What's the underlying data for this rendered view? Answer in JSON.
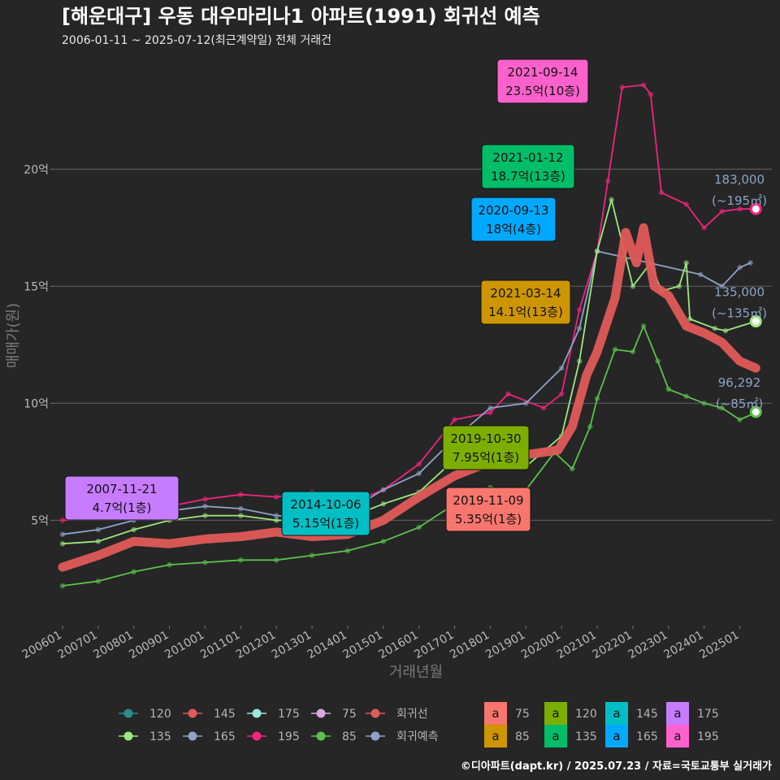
{
  "chart_data": {
    "type": "line",
    "title": "[해운대구] 우동 대우마리나1 아파트(1991) 회귀선 예측",
    "subtitle": "2006-01-11 ~ 2025-07-12(최근계약일) 전체 거래건",
    "xlabel": "거래년월",
    "ylabel": "매매가(원)",
    "caption": "©디아파트(dapt.kr) / 2025.07.23 / 자료=국토교통부 실거래가",
    "xlim": [
      2005.75,
      2025.9
    ],
    "ylim": [
      0.5,
      24.8
    ],
    "y_unit": "억",
    "x_ticks": [
      {
        "v": 2006.0,
        "label": "200601"
      },
      {
        "v": 2007.0,
        "label": "200701"
      },
      {
        "v": 2008.0,
        "label": "200801"
      },
      {
        "v": 2009.0,
        "label": "200901"
      },
      {
        "v": 2010.0,
        "label": "201001"
      },
      {
        "v": 2011.0,
        "label": "201101"
      },
      {
        "v": 2012.0,
        "label": "201201"
      },
      {
        "v": 2013.0,
        "label": "201301"
      },
      {
        "v": 2014.0,
        "label": "201401"
      },
      {
        "v": 2015.0,
        "label": "201501"
      },
      {
        "v": 2016.0,
        "label": "201601"
      },
      {
        "v": 2017.0,
        "label": "201701"
      },
      {
        "v": 2018.0,
        "label": "201801"
      },
      {
        "v": 2019.0,
        "label": "201901"
      },
      {
        "v": 2020.0,
        "label": "202001"
      },
      {
        "v": 2021.0,
        "label": "202101"
      },
      {
        "v": 2022.0,
        "label": "202201"
      },
      {
        "v": 2023.0,
        "label": "202301"
      },
      {
        "v": 2024.0,
        "label": "202401"
      },
      {
        "v": 2025.0,
        "label": "202501"
      }
    ],
    "y_ticks": [
      {
        "v": 5,
        "label": "5억"
      },
      {
        "v": 10,
        "label": "10억"
      },
      {
        "v": 15,
        "label": "15억"
      },
      {
        "v": 20,
        "label": "20억"
      }
    ],
    "grid": true,
    "series": [
      {
        "name": "195",
        "color": "#f0247f",
        "points": [
          [
            2006.0,
            5.0
          ],
          [
            2007.0,
            5.1
          ],
          [
            2008.0,
            5.4
          ],
          [
            2009.0,
            5.6
          ],
          [
            2010.0,
            5.9
          ],
          [
            2011.0,
            6.1
          ],
          [
            2012.0,
            6.0
          ],
          [
            2013.0,
            6.2
          ],
          [
            2014.0,
            5.7
          ],
          [
            2015.0,
            6.3
          ],
          [
            2016.0,
            7.4
          ],
          [
            2017.0,
            9.3
          ],
          [
            2018.0,
            9.6
          ],
          [
            2018.5,
            10.4
          ],
          [
            2019.5,
            9.8
          ],
          [
            2020.0,
            10.4
          ],
          [
            2020.5,
            14.0
          ],
          [
            2021.0,
            16.5
          ],
          [
            2021.3,
            19.5
          ],
          [
            2021.7,
            23.5
          ],
          [
            2022.3,
            23.6
          ],
          [
            2022.5,
            23.2
          ],
          [
            2022.8,
            19.0
          ],
          [
            2023.5,
            18.5
          ],
          [
            2024.0,
            17.5
          ],
          [
            2024.5,
            18.2
          ],
          [
            2025.0,
            18.3
          ],
          [
            2025.45,
            18.3
          ]
        ]
      },
      {
        "name": "165",
        "color": "#8ea2c9",
        "points": [
          [
            2006.0,
            4.4
          ],
          [
            2007.0,
            4.6
          ],
          [
            2008.0,
            5.0
          ],
          [
            2009.0,
            5.4
          ],
          [
            2010.0,
            5.6
          ],
          [
            2011.0,
            5.5
          ],
          [
            2012.0,
            5.2
          ],
          [
            2013.0,
            5.1
          ],
          [
            2014.0,
            5.4
          ],
          [
            2015.0,
            6.3
          ],
          [
            2016.0,
            7.0
          ],
          [
            2017.0,
            8.5
          ],
          [
            2018.0,
            9.8
          ],
          [
            2019.0,
            10.0
          ],
          [
            2020.0,
            11.5
          ],
          [
            2020.5,
            13.2
          ],
          [
            2021.0,
            16.5
          ],
          [
            2023.9,
            15.5
          ],
          [
            2024.5,
            15.0
          ],
          [
            2025.0,
            15.8
          ],
          [
            2025.3,
            16.0
          ]
        ]
      },
      {
        "name": "135",
        "color": "#9ce87f",
        "points": [
          [
            2006.0,
            4.0
          ],
          [
            2007.0,
            4.1
          ],
          [
            2008.0,
            4.6
          ],
          [
            2009.0,
            5.0
          ],
          [
            2010.0,
            5.2
          ],
          [
            2011.0,
            5.2
          ],
          [
            2012.0,
            5.0
          ],
          [
            2013.0,
            5.0
          ],
          [
            2014.0,
            5.1
          ],
          [
            2015.0,
            5.7
          ],
          [
            2016.0,
            6.2
          ],
          [
            2017.0,
            7.6
          ],
          [
            2018.0,
            7.8
          ],
          [
            2019.0,
            7.3
          ],
          [
            2020.0,
            8.6
          ],
          [
            2020.5,
            11.8
          ],
          [
            2021.0,
            16.5
          ],
          [
            2021.4,
            18.7
          ],
          [
            2022.0,
            15.0
          ],
          [
            2022.5,
            16.0
          ],
          [
            2022.8,
            14.8
          ],
          [
            2023.3,
            15.0
          ],
          [
            2023.5,
            16.0
          ],
          [
            2023.6,
            13.6
          ],
          [
            2024.3,
            13.2
          ],
          [
            2024.6,
            13.1
          ],
          [
            2025.45,
            13.5
          ]
        ]
      },
      {
        "name": "85",
        "color": "#5ac24a",
        "points": [
          [
            2006.0,
            2.2
          ],
          [
            2007.0,
            2.4
          ],
          [
            2008.0,
            2.8
          ],
          [
            2009.0,
            3.1
          ],
          [
            2010.0,
            3.2
          ],
          [
            2011.0,
            3.3
          ],
          [
            2012.0,
            3.3
          ],
          [
            2013.0,
            3.5
          ],
          [
            2014.0,
            3.7
          ],
          [
            2015.0,
            4.1
          ],
          [
            2016.0,
            4.7
          ],
          [
            2017.0,
            5.7
          ],
          [
            2018.0,
            6.4
          ],
          [
            2019.0,
            6.3
          ],
          [
            2019.8,
            7.9
          ],
          [
            2020.3,
            7.2
          ],
          [
            2020.8,
            9.0
          ],
          [
            2021.0,
            10.2
          ],
          [
            2021.5,
            12.3
          ],
          [
            2022.0,
            12.2
          ],
          [
            2022.3,
            13.3
          ],
          [
            2022.7,
            11.8
          ],
          [
            2023.0,
            10.6
          ],
          [
            2023.5,
            10.3
          ],
          [
            2024.0,
            10.0
          ],
          [
            2024.5,
            9.8
          ],
          [
            2025.0,
            9.3
          ],
          [
            2025.45,
            9.6
          ]
        ]
      },
      {
        "name": "회귀선",
        "color": "#e05a5a",
        "points": [
          [
            2006.0,
            3.0
          ],
          [
            2007.0,
            3.5
          ],
          [
            2008.0,
            4.1
          ],
          [
            2009.0,
            4.0
          ],
          [
            2010.0,
            4.2
          ],
          [
            2011.0,
            4.3
          ],
          [
            2012.0,
            4.5
          ],
          [
            2013.0,
            4.3
          ],
          [
            2014.0,
            4.4
          ],
          [
            2015.0,
            5.0
          ],
          [
            2016.0,
            6.0
          ],
          [
            2017.0,
            6.9
          ],
          [
            2018.0,
            7.5
          ],
          [
            2019.0,
            7.8
          ],
          [
            2019.9,
            8.0
          ],
          [
            2020.3,
            9.0
          ],
          [
            2020.7,
            11.2
          ],
          [
            2021.0,
            12.2
          ],
          [
            2021.5,
            14.5
          ],
          [
            2021.8,
            17.3
          ],
          [
            2022.1,
            16.0
          ],
          [
            2022.3,
            17.5
          ],
          [
            2022.6,
            15.0
          ],
          [
            2023.0,
            14.6
          ],
          [
            2023.5,
            13.3
          ],
          [
            2024.0,
            13.0
          ],
          [
            2024.5,
            12.6
          ],
          [
            2025.0,
            11.8
          ],
          [
            2025.45,
            11.5
          ]
        ]
      }
    ],
    "legend": {
      "placement": "bottom",
      "symbol_items": [
        {
          "label": "120",
          "color": "#2c8c8c"
        },
        {
          "label": "145",
          "color": "#e05a5a"
        },
        {
          "label": "175",
          "color": "#9ae8e0"
        },
        {
          "label": "75",
          "color": "#d9a7e0"
        },
        {
          "label": "회귀선",
          "color": "#e05a5a"
        },
        {
          "label": "135",
          "color": "#9ce87f"
        },
        {
          "label": "165",
          "color": "#8ea2c9"
        },
        {
          "label": "195",
          "color": "#f0247f"
        },
        {
          "label": "85",
          "color": "#5ac24a"
        },
        {
          "label": "회귀예측",
          "color": "#8ea2c9"
        }
      ],
      "box_glyph": "a",
      "box_items": [
        {
          "label": "75",
          "color": "#f8766d"
        },
        {
          "label": "120",
          "color": "#7cae00"
        },
        {
          "label": "145",
          "color": "#00bfc4"
        },
        {
          "label": "175",
          "color": "#c77cff"
        },
        {
          "label": "85",
          "color": "#cd9600"
        },
        {
          "label": "135",
          "color": "#00be67"
        },
        {
          "label": "165",
          "color": "#00a9ff"
        },
        {
          "label": "195",
          "color": "#ff61cc"
        }
      ]
    },
    "annotations": [
      {
        "date": "2007-11-21",
        "text": "4.7억(1층)",
        "color": "#c77cff"
      },
      {
        "date": "2014-10-06",
        "text": "5.15억(1층)",
        "color": "#00bfc4"
      },
      {
        "date": "2019-10-30",
        "text": "7.95억(1층)",
        "color": "#7cae00"
      },
      {
        "date": "2019-11-09",
        "text": "5.35억(1층)",
        "color": "#f8766d"
      },
      {
        "date": "2021-03-14",
        "text": "14.1억(13층)",
        "color": "#cd9600"
      },
      {
        "date": "2020-09-13",
        "text": "18억(4층)",
        "color": "#00a9ff"
      },
      {
        "date": "2021-01-12",
        "text": "18.7억(13층)",
        "color": "#00be67"
      },
      {
        "date": "2021-09-14",
        "text": "23.5억(10층)",
        "color": "#ff61cc"
      }
    ],
    "end_labels": [
      {
        "line1": "183,000",
        "line2": "(~195㎡)",
        "y": 18.3,
        "color": "#f0247f"
      },
      {
        "line1": "135,000",
        "line2": "(~135㎡)",
        "y": 13.5,
        "color": "#9ce87f"
      },
      {
        "line1": "96,292",
        "line2": "(~85㎡)",
        "y": 9.63,
        "color": "#5ac24a"
      }
    ]
  }
}
